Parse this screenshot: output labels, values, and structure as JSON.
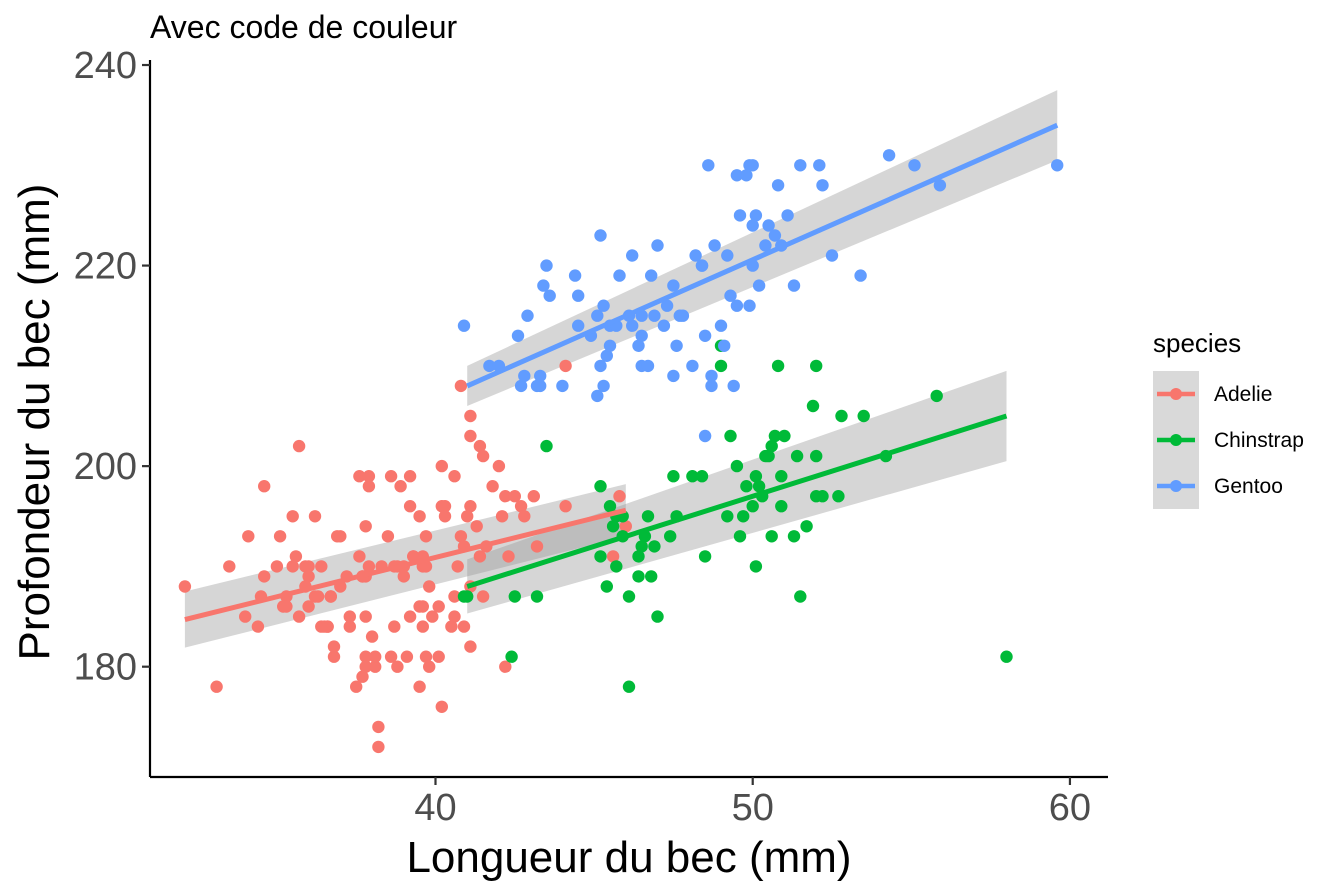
{
  "chart_data": {
    "type": "scatter",
    "title": "Avec code de couleur",
    "xlabel": "Longueur du bec (mm)",
    "ylabel": "Profondeur du bec (mm)",
    "xlim": [
      31,
      61.2
    ],
    "ylim": [
      169,
      240.5
    ],
    "x_ticks": [
      40,
      50,
      60
    ],
    "y_ticks": [
      180,
      200,
      220,
      240
    ],
    "grid": false,
    "legend": {
      "title": "species",
      "position": "right"
    },
    "series": [
      {
        "name": "Adelie",
        "color": "#F8766D",
        "trend": {
          "x": [
            32.1,
            46.0
          ],
          "y": [
            184.7,
            195.6
          ],
          "se": [
            2.8,
            2.6
          ]
        },
        "points": [
          [
            32.1,
            188
          ],
          [
            33.1,
            178
          ],
          [
            33.5,
            190
          ],
          [
            34.0,
            185
          ],
          [
            34.1,
            193
          ],
          [
            34.4,
            184
          ],
          [
            34.5,
            187
          ],
          [
            34.6,
            189
          ],
          [
            34.6,
            198
          ],
          [
            35.0,
            190
          ],
          [
            35.1,
            193
          ],
          [
            35.2,
            186
          ],
          [
            35.3,
            187
          ],
          [
            35.5,
            190
          ],
          [
            35.5,
            195
          ],
          [
            35.6,
            191
          ],
          [
            35.7,
            185
          ],
          [
            35.7,
            202
          ],
          [
            35.9,
            190
          ],
          [
            36.0,
            189
          ],
          [
            36.0,
            186
          ],
          [
            36.0,
            190
          ],
          [
            36.2,
            187
          ],
          [
            36.2,
            195
          ],
          [
            36.4,
            190
          ],
          [
            36.5,
            184
          ],
          [
            36.6,
            184
          ],
          [
            36.7,
            187
          ],
          [
            36.8,
            181
          ],
          [
            36.8,
            182
          ],
          [
            36.9,
            193
          ],
          [
            37.0,
            193
          ],
          [
            37.0,
            188
          ],
          [
            37.2,
            189
          ],
          [
            37.3,
            185
          ],
          [
            37.3,
            184
          ],
          [
            37.5,
            178
          ],
          [
            37.6,
            191
          ],
          [
            37.6,
            199
          ],
          [
            37.7,
            179
          ],
          [
            37.8,
            185
          ],
          [
            37.8,
            181
          ],
          [
            37.8,
            194
          ],
          [
            37.8,
            180
          ],
          [
            37.9,
            199
          ],
          [
            37.9,
            198
          ],
          [
            38.0,
            183
          ],
          [
            38.1,
            180
          ],
          [
            38.2,
            174
          ],
          [
            38.2,
            172
          ],
          [
            38.3,
            190
          ],
          [
            38.5,
            193
          ],
          [
            38.6,
            181
          ],
          [
            38.7,
            184
          ],
          [
            38.8,
            190
          ],
          [
            38.9,
            198
          ],
          [
            39.0,
            189
          ],
          [
            39.0,
            190
          ],
          [
            39.1,
            181
          ],
          [
            39.2,
            185
          ],
          [
            39.2,
            199
          ],
          [
            39.3,
            191
          ],
          [
            39.5,
            186
          ],
          [
            39.5,
            195
          ],
          [
            39.6,
            190
          ],
          [
            39.6,
            191
          ],
          [
            39.8,
            180
          ],
          [
            39.8,
            188
          ],
          [
            39.9,
            185
          ],
          [
            40.1,
            181
          ],
          [
            40.1,
            186
          ],
          [
            40.2,
            196
          ],
          [
            40.3,
            196
          ],
          [
            40.5,
            184
          ],
          [
            40.6,
            187
          ],
          [
            40.6,
            185
          ],
          [
            40.7,
            190
          ],
          [
            40.8,
            193
          ],
          [
            41.0,
            195
          ],
          [
            41.1,
            196
          ],
          [
            41.1,
            188
          ],
          [
            41.3,
            194
          ],
          [
            41.4,
            202
          ],
          [
            41.5,
            201
          ],
          [
            41.6,
            192
          ],
          [
            41.8,
            198
          ],
          [
            42.0,
            200
          ],
          [
            42.1,
            195
          ],
          [
            42.2,
            197
          ],
          [
            42.3,
            191
          ],
          [
            42.5,
            197
          ],
          [
            42.7,
            196
          ],
          [
            42.8,
            195
          ],
          [
            43.1,
            197
          ],
          [
            43.2,
            192
          ],
          [
            44.1,
            196
          ],
          [
            44.1,
            210
          ],
          [
            45.6,
            191
          ],
          [
            45.8,
            197
          ],
          [
            46.0,
            194
          ],
          [
            39.6,
            186
          ],
          [
            40.9,
            184
          ],
          [
            39.7,
            193
          ],
          [
            38.6,
            199
          ],
          [
            40.6,
            199
          ],
          [
            41.1,
            203
          ],
          [
            41.1,
            205
          ],
          [
            37.8,
            189
          ],
          [
            36.6,
            184
          ],
          [
            40.3,
            195
          ],
          [
            39.3,
            191
          ],
          [
            38.8,
            180
          ],
          [
            35.9,
            188
          ],
          [
            39.2,
            196
          ],
          [
            36.4,
            184
          ],
          [
            35.3,
            186
          ],
          [
            38.1,
            181
          ],
          [
            37.7,
            189
          ],
          [
            39.5,
            178
          ],
          [
            40.2,
            176
          ],
          [
            41.1,
            182
          ],
          [
            39.7,
            181
          ],
          [
            37.9,
            190
          ],
          [
            36.7,
            187
          ],
          [
            38.7,
            190
          ],
          [
            40.2,
            200
          ],
          [
            39.7,
            190
          ],
          [
            40.8,
            208
          ],
          [
            41.5,
            187
          ],
          [
            36.3,
            187
          ],
          [
            41.4,
            191
          ],
          [
            40.9,
            192
          ],
          [
            42.2,
            180
          ],
          [
            37.7,
            189
          ],
          [
            39.6,
            184
          ]
        ]
      },
      {
        "name": "Chinstrap",
        "color": "#00BA38",
        "trend": {
          "x": [
            41.0,
            58.0
          ],
          "y": [
            188.0,
            205.0
          ],
          "se": [
            2.7,
            4.5
          ]
        },
        "points": [
          [
            40.9,
            187
          ],
          [
            41.0,
            187
          ],
          [
            42.4,
            181
          ],
          [
            42.5,
            187
          ],
          [
            43.2,
            187
          ],
          [
            43.5,
            202
          ],
          [
            45.2,
            198
          ],
          [
            45.2,
            191
          ],
          [
            45.4,
            188
          ],
          [
            45.5,
            196
          ],
          [
            45.6,
            194
          ],
          [
            45.7,
            195
          ],
          [
            45.7,
            190
          ],
          [
            45.9,
            195
          ],
          [
            46.1,
            178
          ],
          [
            46.1,
            187
          ],
          [
            46.4,
            189
          ],
          [
            46.4,
            191
          ],
          [
            46.6,
            193
          ],
          [
            46.7,
            195
          ],
          [
            46.8,
            189
          ],
          [
            46.9,
            192
          ],
          [
            47.0,
            185
          ],
          [
            47.5,
            199
          ],
          [
            47.6,
            195
          ],
          [
            48.1,
            199
          ],
          [
            48.5,
            191
          ],
          [
            49.0,
            210
          ],
          [
            49.0,
            212
          ],
          [
            49.3,
            203
          ],
          [
            49.5,
            200
          ],
          [
            49.6,
            193
          ],
          [
            49.7,
            195
          ],
          [
            49.8,
            198
          ],
          [
            50.0,
            196
          ],
          [
            50.1,
            190
          ],
          [
            50.2,
            198
          ],
          [
            50.3,
            197
          ],
          [
            50.5,
            201
          ],
          [
            50.6,
            193
          ],
          [
            50.7,
            203
          ],
          [
            50.8,
            210
          ],
          [
            50.9,
            196
          ],
          [
            51.0,
            203
          ],
          [
            51.3,
            193
          ],
          [
            51.4,
            201
          ],
          [
            51.5,
            187
          ],
          [
            51.7,
            194
          ],
          [
            52.0,
            197
          ],
          [
            52.0,
            210
          ],
          [
            52.0,
            201
          ],
          [
            52.2,
            197
          ],
          [
            52.7,
            197
          ],
          [
            52.8,
            205
          ],
          [
            53.5,
            205
          ],
          [
            54.2,
            201
          ],
          [
            55.8,
            207
          ],
          [
            58.0,
            181
          ],
          [
            50.4,
            201
          ],
          [
            50.9,
            199
          ],
          [
            48.4,
            199
          ],
          [
            49.2,
            195
          ],
          [
            47.4,
            193
          ],
          [
            46.5,
            192
          ],
          [
            45.9,
            193
          ],
          [
            50.1,
            199
          ],
          [
            51.9,
            206
          ],
          [
            50.6,
            202
          ]
        ]
      },
      {
        "name": "Gentoo",
        "color": "#619CFF",
        "trend": {
          "x": [
            41.0,
            59.6
          ],
          "y": [
            208.0,
            234.0
          ],
          "se": [
            2.0,
            3.5
          ]
        },
        "points": [
          [
            40.9,
            214
          ],
          [
            41.7,
            210
          ],
          [
            42.0,
            210
          ],
          [
            42.6,
            213
          ],
          [
            42.7,
            208
          ],
          [
            42.8,
            209
          ],
          [
            42.9,
            215
          ],
          [
            43.2,
            208
          ],
          [
            43.3,
            209
          ],
          [
            43.3,
            208
          ],
          [
            43.4,
            218
          ],
          [
            43.5,
            220
          ],
          [
            43.6,
            217
          ],
          [
            44.0,
            208
          ],
          [
            44.4,
            219
          ],
          [
            44.5,
            217
          ],
          [
            44.9,
            213
          ],
          [
            45.1,
            215
          ],
          [
            45.1,
            207
          ],
          [
            45.2,
            210
          ],
          [
            45.2,
            223
          ],
          [
            45.3,
            208
          ],
          [
            45.4,
            211
          ],
          [
            45.5,
            214
          ],
          [
            45.5,
            212
          ],
          [
            45.7,
            214
          ],
          [
            45.8,
            219
          ],
          [
            46.1,
            215
          ],
          [
            46.2,
            221
          ],
          [
            46.4,
            212
          ],
          [
            46.5,
            210
          ],
          [
            46.5,
            213
          ],
          [
            46.7,
            210
          ],
          [
            46.8,
            219
          ],
          [
            47.0,
            222
          ],
          [
            47.2,
            214
          ],
          [
            47.3,
            216
          ],
          [
            47.5,
            209
          ],
          [
            47.5,
            218
          ],
          [
            47.7,
            215
          ],
          [
            48.1,
            210
          ],
          [
            48.2,
            221
          ],
          [
            48.4,
            220
          ],
          [
            48.5,
            213
          ],
          [
            48.6,
            230
          ],
          [
            48.7,
            208
          ],
          [
            48.8,
            222
          ],
          [
            49.0,
            214
          ],
          [
            49.1,
            212
          ],
          [
            49.2,
            221
          ],
          [
            49.3,
            217
          ],
          [
            49.5,
            216
          ],
          [
            49.6,
            225
          ],
          [
            49.8,
            229
          ],
          [
            49.9,
            216
          ],
          [
            50.0,
            220
          ],
          [
            50.1,
            225
          ],
          [
            50.2,
            218
          ],
          [
            50.4,
            222
          ],
          [
            50.5,
            224
          ],
          [
            50.7,
            223
          ],
          [
            50.8,
            228
          ],
          [
            51.1,
            225
          ],
          [
            51.3,
            218
          ],
          [
            51.5,
            230
          ],
          [
            52.1,
            230
          ],
          [
            52.2,
            228
          ],
          [
            52.5,
            221
          ],
          [
            53.4,
            219
          ],
          [
            54.3,
            231
          ],
          [
            55.1,
            230
          ],
          [
            55.9,
            228
          ],
          [
            59.6,
            230
          ],
          [
            46.2,
            214
          ],
          [
            47.6,
            212
          ],
          [
            49.4,
            208
          ],
          [
            48.7,
            209
          ],
          [
            46.5,
            215
          ],
          [
            45.3,
            216
          ],
          [
            48.5,
            203
          ],
          [
            44.5,
            214
          ],
          [
            46.9,
            215
          ],
          [
            50.0,
            224
          ],
          [
            47.8,
            215
          ],
          [
            48.4,
            220
          ],
          [
            49.9,
            230
          ],
          [
            50.0,
            230
          ],
          [
            50.9,
            222
          ],
          [
            49.5,
            229
          ]
        ]
      }
    ]
  }
}
